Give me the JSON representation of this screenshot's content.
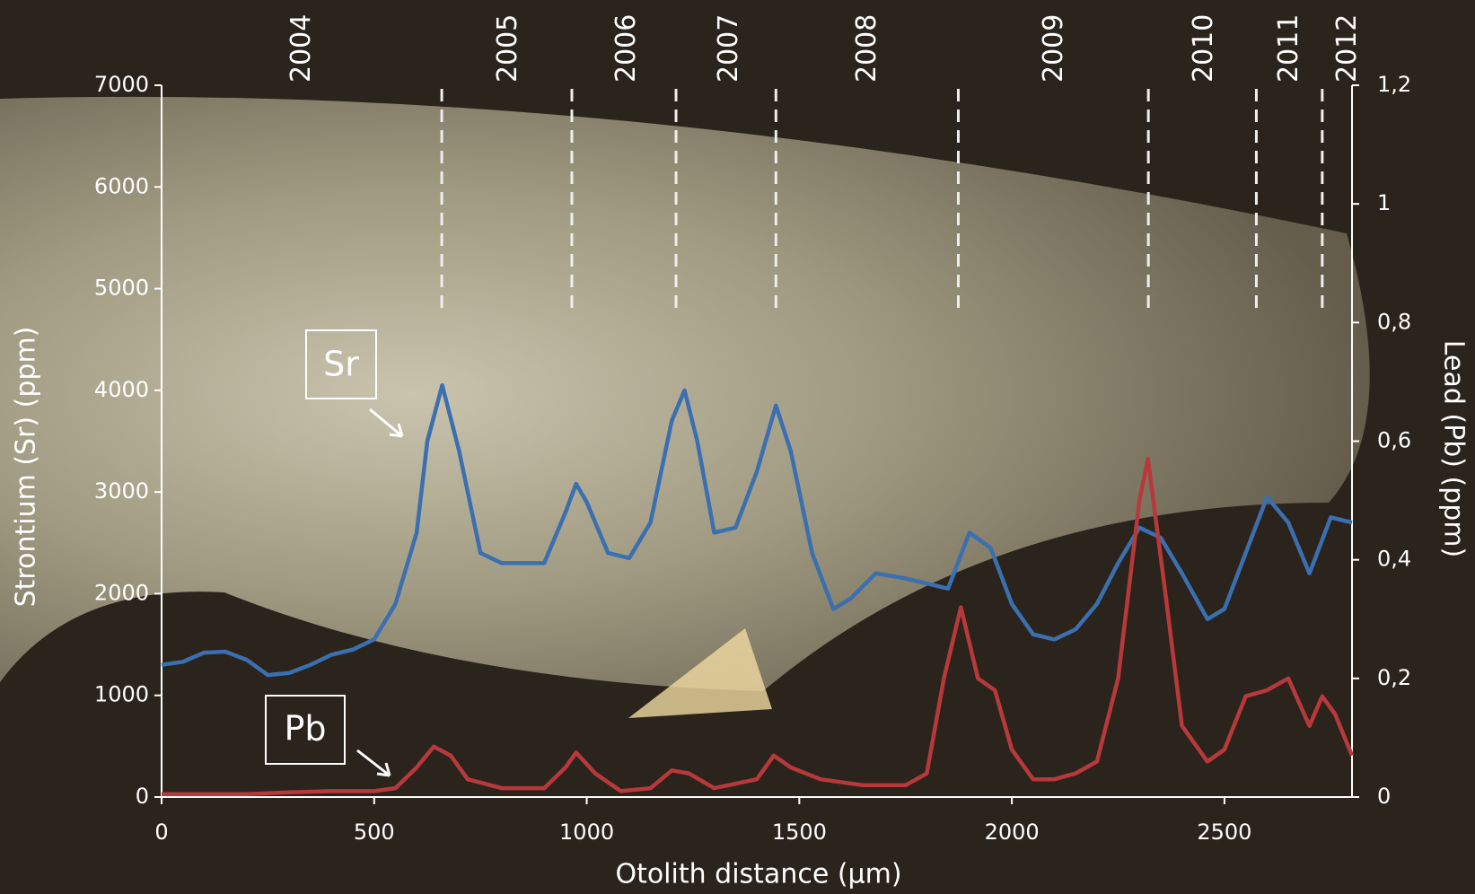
{
  "chart_data": {
    "type": "line",
    "x_label": "Otolith distance (µm)",
    "y_label": "Strontium (Sr) (ppm)",
    "y2_label": "Lead (Pb) (ppm)",
    "xlim": [
      0,
      2800
    ],
    "xticks": [
      0,
      500,
      1000,
      1500,
      2000,
      2500
    ],
    "ylim": [
      0,
      7000
    ],
    "yticks": [
      0,
      1000,
      2000,
      3000,
      4000,
      5000,
      6000,
      7000
    ],
    "y2lim": [
      0,
      1.2
    ],
    "y2ticks": [
      0,
      {
        "value": 0.2,
        "label": "0,2"
      },
      {
        "value": 0.4,
        "label": "0,4"
      },
      {
        "value": 0.6,
        "label": "0,6"
      },
      {
        "value": 0.8,
        "label": "0,8"
      },
      1,
      {
        "value": 1.2,
        "label": "1,2"
      }
    ],
    "years": [
      {
        "label": "2004",
        "x": 330
      },
      {
        "label": "2005",
        "x": 816
      },
      {
        "label": "2006",
        "x": 1095
      },
      {
        "label": "2007",
        "x": 1336
      },
      {
        "label": "2008",
        "x": 1661
      },
      {
        "label": "2009",
        "x": 2100
      },
      {
        "label": "2010",
        "x": 2453
      },
      {
        "label": "2011",
        "x": 2653
      },
      {
        "label": "2012",
        "x": 2790
      }
    ],
    "year_boundaries": [
      659,
      965,
      1210,
      1445,
      1874,
      2321,
      2575,
      2730
    ],
    "series": [
      {
        "name": "Sr",
        "color": "#3b6fb0",
        "axis": "y",
        "x": [
          0,
          50,
          100,
          150,
          200,
          250,
          300,
          350,
          400,
          450,
          500,
          550,
          600,
          625,
          660,
          700,
          750,
          800,
          850,
          900,
          950,
          975,
          1000,
          1050,
          1100,
          1150,
          1200,
          1230,
          1260,
          1300,
          1350,
          1400,
          1445,
          1480,
          1530,
          1580,
          1620,
          1680,
          1750,
          1800,
          1850,
          1900,
          1950,
          2000,
          2050,
          2100,
          2150,
          2200,
          2250,
          2300,
          2350,
          2400,
          2460,
          2500,
          2550,
          2600,
          2650,
          2700,
          2750,
          2800
        ],
        "values": [
          1300,
          1330,
          1420,
          1430,
          1350,
          1200,
          1220,
          1300,
          1400,
          1450,
          1550,
          1900,
          2600,
          3500,
          4050,
          3400,
          2400,
          2300,
          2300,
          2300,
          2800,
          3080,
          2900,
          2400,
          2350,
          2700,
          3700,
          4000,
          3500,
          2600,
          2650,
          3200,
          3850,
          3400,
          2400,
          1850,
          1950,
          2200,
          2150,
          2100,
          2050,
          2600,
          2450,
          1900,
          1600,
          1550,
          1650,
          1900,
          2300,
          2650,
          2550,
          2200,
          1750,
          1850,
          2400,
          2950,
          2700,
          2200,
          2750,
          2700
        ]
      },
      {
        "name": "Pb",
        "color": "#b8393b",
        "axis": "y2",
        "x": [
          0,
          100,
          200,
          300,
          400,
          500,
          550,
          600,
          640,
          680,
          720,
          800,
          900,
          950,
          975,
          1020,
          1080,
          1150,
          1200,
          1240,
          1300,
          1400,
          1440,
          1480,
          1550,
          1650,
          1750,
          1800,
          1840,
          1880,
          1920,
          1960,
          2000,
          2050,
          2100,
          2150,
          2200,
          2250,
          2300,
          2320,
          2360,
          2400,
          2460,
          2500,
          2550,
          2600,
          2650,
          2700,
          2730,
          2760,
          2800
        ],
        "values": [
          0.005,
          0.005,
          0.005,
          0.008,
          0.01,
          0.01,
          0.015,
          0.05,
          0.085,
          0.07,
          0.03,
          0.015,
          0.015,
          0.05,
          0.075,
          0.04,
          0.01,
          0.015,
          0.045,
          0.04,
          0.015,
          0.03,
          0.07,
          0.05,
          0.03,
          0.02,
          0.02,
          0.04,
          0.2,
          0.32,
          0.2,
          0.18,
          0.08,
          0.03,
          0.03,
          0.04,
          0.06,
          0.2,
          0.5,
          0.57,
          0.35,
          0.12,
          0.06,
          0.08,
          0.17,
          0.18,
          0.2,
          0.12,
          0.17,
          0.14,
          0.07
        ]
      }
    ]
  }
}
